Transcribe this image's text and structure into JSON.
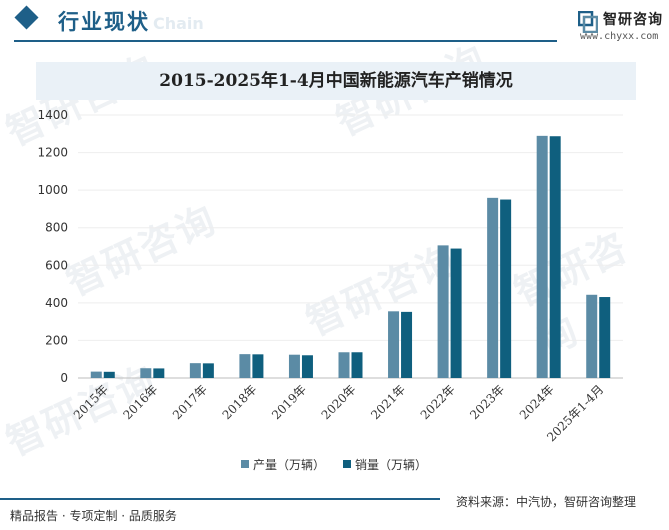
{
  "header": {
    "section_title": "行业现状",
    "section_ghost": "Chain",
    "logo_name": "智研咨询",
    "logo_url": "www.chyxx.com"
  },
  "watermark": "智研咨询",
  "colors": {
    "accent": "#1e5f88",
    "production": "#5b8ba5",
    "sales": "#0f5f7e"
  },
  "chart_data": {
    "type": "bar",
    "title": "2015-2025年1-4月中国新能源汽车产销情况",
    "categories": [
      "2015年",
      "2016年",
      "2017年",
      "2018年",
      "2019年",
      "2020年",
      "2021年",
      "2022年",
      "2023年",
      "2024年",
      "2025年1-4月"
    ],
    "series": [
      {
        "name": "产量（万辆）",
        "values": [
          34,
          52,
          79,
          127,
          124,
          137,
          355,
          706,
          959,
          1289,
          443
        ]
      },
      {
        "name": "销量（万辆）",
        "values": [
          33,
          51,
          78,
          126,
          121,
          137,
          352,
          689,
          950,
          1287,
          431
        ]
      }
    ],
    "ylim": [
      0,
      1400
    ],
    "yticks": [
      0,
      200,
      400,
      600,
      800,
      1000,
      1200,
      1400
    ],
    "xlabel": "",
    "ylabel": "",
    "grid": true,
    "legend_position": "bottom-center"
  },
  "footer": {
    "left": "精品报告 · 专项定制 · 品质服务",
    "right": "资料来源：中汽协，智研咨询整理"
  }
}
